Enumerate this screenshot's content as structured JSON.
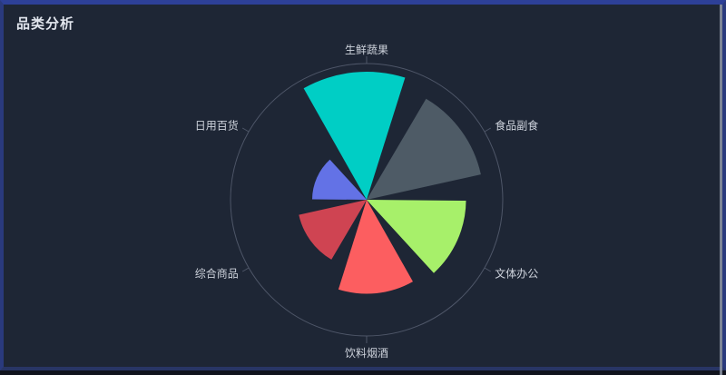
{
  "panel": {
    "title": "品类分析"
  },
  "colors": {
    "panel_bg": "#1e2635",
    "border_top": "#2d4098",
    "border_side": "#2a3a7d",
    "border_bottom": "#283565",
    "edge_strip": "#8e96a6",
    "title": "#e2e6ee",
    "axis_line": "#4e5668",
    "label": "#ced3dc"
  },
  "chart_data": {
    "type": "pie",
    "variant": "nightingale-rose",
    "title": "品类分析",
    "categories": [
      "生鲜蔬果",
      "食品副食",
      "文体办公",
      "饮料烟酒",
      "综合商品",
      "日用百货"
    ],
    "values": [
      94,
      86,
      73,
      69,
      51,
      40
    ],
    "values_note": "relative sector radius as percent of outer guide circle",
    "colors": [
      "#00cec5",
      "#4e5b66",
      "#a7f06a",
      "#fc5e60",
      "#cf4452",
      "#6372e6"
    ],
    "slot_step_deg": 60,
    "start_offset_deg": -29.5,
    "sector_span_deg": 47,
    "first_slot_angle_deg": 0,
    "legend": "none",
    "grid": "single-outer-circle",
    "label_position": "outside-with-tick"
  }
}
